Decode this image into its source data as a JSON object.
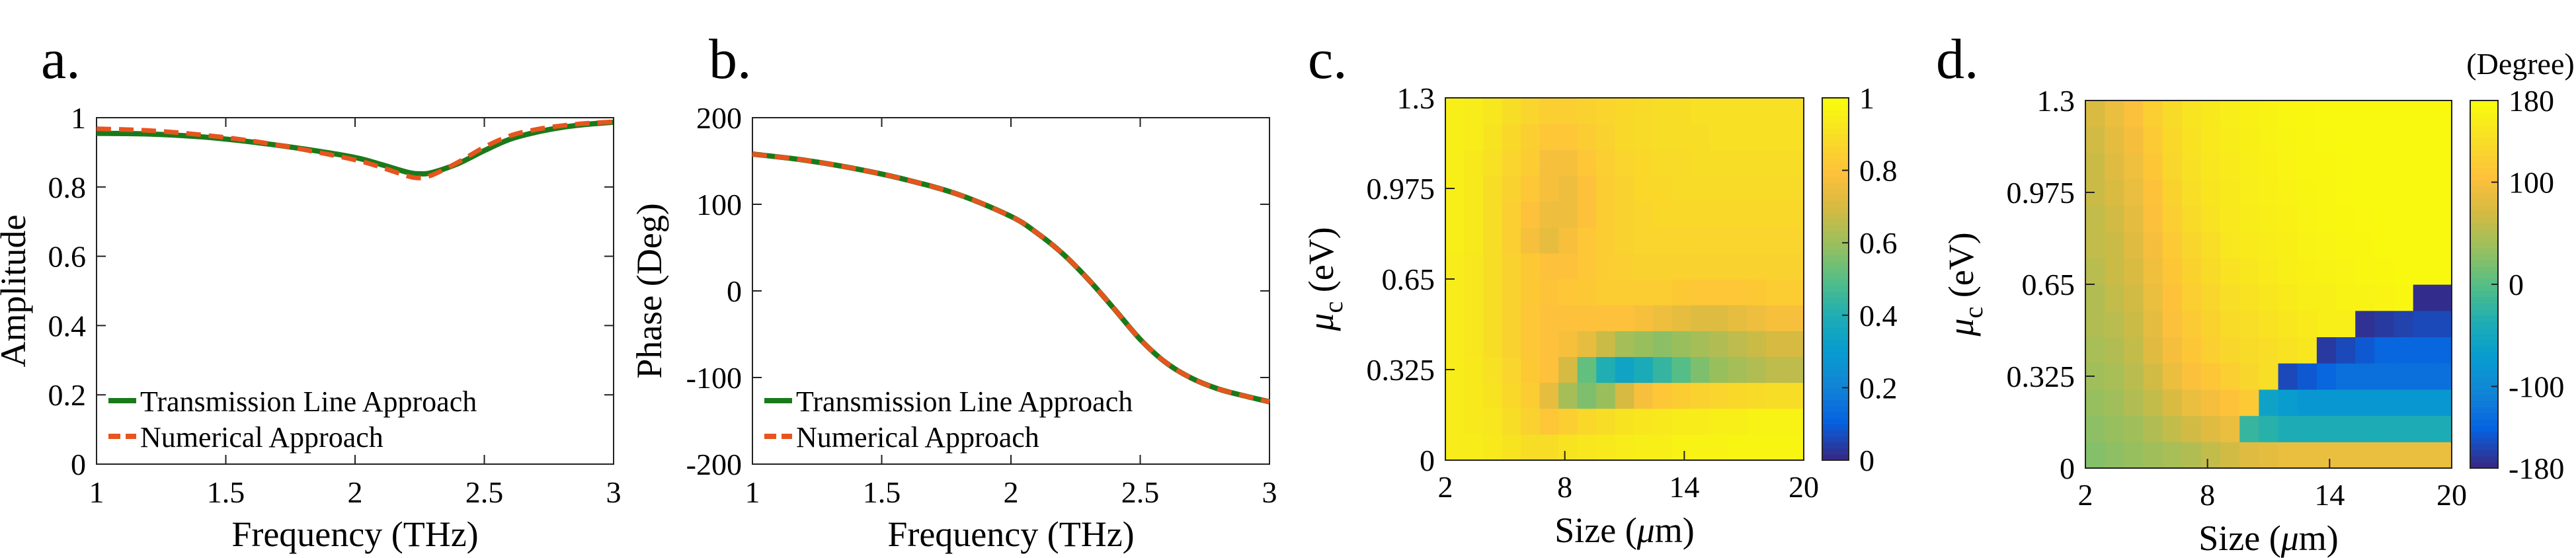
{
  "panel_labels": [
    "a.",
    "b.",
    "c.",
    "d."
  ],
  "colorbar_unit_d": "(Degree)",
  "chart_data": [
    {
      "type": "line",
      "panel": "a.",
      "xlabel": "Frequency (THz)",
      "ylabel": "Amplitude",
      "xlim": [
        1,
        3
      ],
      "ylim": [
        0,
        1
      ],
      "xticks": [
        "1",
        "1.5",
        "2",
        "2.5",
        "3"
      ],
      "yticks": [
        "0",
        "0.2",
        "0.4",
        "0.6",
        "0.8",
        "1"
      ],
      "legend_position": "bottom-left",
      "series": [
        {
          "name": "Transmission Line Approach",
          "color": "#1a7a1a",
          "dash": "solid",
          "x": [
            1.0,
            1.2,
            1.4,
            1.6,
            1.8,
            2.0,
            2.1,
            2.2,
            2.25,
            2.3,
            2.4,
            2.5,
            2.6,
            2.7,
            2.8,
            2.9,
            3.0
          ],
          "y": [
            0.955,
            0.953,
            0.945,
            0.93,
            0.91,
            0.885,
            0.865,
            0.843,
            0.838,
            0.842,
            0.868,
            0.905,
            0.938,
            0.958,
            0.972,
            0.981,
            0.987
          ]
        },
        {
          "name": "Numerical Approach",
          "color": "#e8541e",
          "dash": "dashed",
          "x": [
            1.0,
            1.2,
            1.4,
            1.6,
            1.8,
            2.0,
            2.1,
            2.2,
            2.25,
            2.3,
            2.4,
            2.5,
            2.6,
            2.7,
            2.8,
            2.9,
            3.0
          ],
          "y": [
            0.968,
            0.963,
            0.951,
            0.933,
            0.908,
            0.878,
            0.857,
            0.832,
            0.826,
            0.835,
            0.872,
            0.915,
            0.948,
            0.966,
            0.977,
            0.984,
            0.988
          ]
        }
      ]
    },
    {
      "type": "line",
      "panel": "b.",
      "xlabel": "Frequency (THz)",
      "ylabel": "Phase (Deg)",
      "xlim": [
        1,
        3
      ],
      "ylim": [
        -200,
        200
      ],
      "xticks": [
        "1",
        "1.5",
        "2",
        "2.5",
        "3"
      ],
      "yticks": [
        "-200",
        "-100",
        "0",
        "100",
        "200"
      ],
      "legend_position": "bottom-left",
      "series": [
        {
          "name": "Transmission Line Approach",
          "color": "#1a7a1a",
          "dash": "solid",
          "x": [
            1.0,
            1.2,
            1.4,
            1.6,
            1.8,
            2.0,
            2.1,
            2.2,
            2.3,
            2.4,
            2.5,
            2.6,
            2.7,
            2.8,
            2.9,
            3.0
          ],
          "y": [
            158,
            151,
            141,
            128,
            111,
            86,
            67,
            43,
            13,
            -21,
            -56,
            -83,
            -101,
            -113,
            -121,
            -128
          ]
        },
        {
          "name": "Numerical Approach",
          "color": "#e8541e",
          "dash": "dashed",
          "x": [
            1.0,
            1.2,
            1.4,
            1.6,
            1.8,
            2.0,
            2.1,
            2.2,
            2.3,
            2.4,
            2.5,
            2.6,
            2.7,
            2.8,
            2.9,
            3.0
          ],
          "y": [
            158,
            151,
            141,
            128,
            111,
            86,
            67,
            43,
            13,
            -21,
            -56,
            -83,
            -101,
            -113,
            -121,
            -128
          ]
        }
      ]
    },
    {
      "type": "heatmap",
      "panel": "c.",
      "xlabel": "Size (μm)",
      "ylabel": "μc (eV)",
      "xlim": [
        2,
        20
      ],
      "ylim": [
        0,
        1.3
      ],
      "xticks": [
        "2",
        "8",
        "14",
        "20"
      ],
      "yticks": [
        "0",
        "0.325",
        "0.65",
        "0.975",
        "1.3"
      ],
      "colorbar": {
        "min": 0,
        "max": 1,
        "ticks": [
          "0",
          "0.2",
          "0.4",
          "0.6",
          "0.8",
          "1"
        ]
      },
      "colormap": "parula",
      "x": [
        2,
        3,
        4,
        5,
        6,
        7,
        8,
        9,
        10,
        11,
        12,
        13,
        14,
        15,
        16,
        17,
        18,
        19,
        20
      ],
      "y": [
        0,
        0.1,
        0.2,
        0.3,
        0.4,
        0.5,
        0.6,
        0.7,
        0.8,
        0.9,
        1.0,
        1.1,
        1.2,
        1.3
      ],
      "z": [
        [
          0.95,
          0.95,
          0.94,
          0.92,
          0.9,
          0.9,
          0.92,
          0.93,
          0.94,
          0.95,
          0.96,
          0.96,
          0.97,
          0.97,
          0.97,
          0.98,
          0.98,
          0.98,
          0.98
        ],
        [
          0.95,
          0.94,
          0.93,
          0.9,
          0.86,
          0.82,
          0.85,
          0.88,
          0.9,
          0.92,
          0.93,
          0.94,
          0.95,
          0.95,
          0.96,
          0.96,
          0.97,
          0.97,
          0.97
        ],
        [
          0.95,
          0.94,
          0.92,
          0.88,
          0.84,
          0.74,
          0.62,
          0.56,
          0.6,
          0.7,
          0.78,
          0.82,
          0.84,
          0.86,
          0.87,
          0.88,
          0.89,
          0.9,
          0.9
        ],
        [
          0.95,
          0.94,
          0.91,
          0.87,
          0.83,
          0.8,
          0.7,
          0.52,
          0.4,
          0.34,
          0.38,
          0.44,
          0.5,
          0.56,
          0.6,
          0.62,
          0.64,
          0.66,
          0.66
        ],
        [
          0.95,
          0.93,
          0.9,
          0.86,
          0.82,
          0.8,
          0.78,
          0.74,
          0.68,
          0.62,
          0.6,
          0.58,
          0.6,
          0.62,
          0.64,
          0.66,
          0.68,
          0.7,
          0.7
        ],
        [
          0.95,
          0.93,
          0.9,
          0.86,
          0.82,
          0.8,
          0.8,
          0.8,
          0.8,
          0.8,
          0.78,
          0.76,
          0.74,
          0.72,
          0.72,
          0.74,
          0.76,
          0.78,
          0.78
        ],
        [
          0.95,
          0.93,
          0.9,
          0.86,
          0.83,
          0.81,
          0.82,
          0.83,
          0.84,
          0.84,
          0.84,
          0.84,
          0.83,
          0.82,
          0.82,
          0.82,
          0.83,
          0.84,
          0.84
        ],
        [
          0.95,
          0.93,
          0.9,
          0.86,
          0.83,
          0.8,
          0.8,
          0.82,
          0.84,
          0.85,
          0.86,
          0.86,
          0.86,
          0.86,
          0.86,
          0.86,
          0.86,
          0.86,
          0.86
        ],
        [
          0.96,
          0.94,
          0.9,
          0.85,
          0.78,
          0.74,
          0.78,
          0.82,
          0.84,
          0.86,
          0.87,
          0.87,
          0.87,
          0.87,
          0.87,
          0.87,
          0.87,
          0.87,
          0.87
        ],
        [
          0.96,
          0.94,
          0.9,
          0.85,
          0.8,
          0.76,
          0.76,
          0.8,
          0.84,
          0.86,
          0.87,
          0.88,
          0.88,
          0.88,
          0.88,
          0.88,
          0.88,
          0.88,
          0.88
        ],
        [
          0.96,
          0.94,
          0.9,
          0.86,
          0.82,
          0.78,
          0.76,
          0.8,
          0.84,
          0.86,
          0.88,
          0.88,
          0.89,
          0.89,
          0.89,
          0.89,
          0.89,
          0.89,
          0.89
        ],
        [
          0.96,
          0.94,
          0.91,
          0.87,
          0.84,
          0.78,
          0.78,
          0.82,
          0.85,
          0.87,
          0.88,
          0.89,
          0.89,
          0.9,
          0.9,
          0.9,
          0.9,
          0.9,
          0.9
        ],
        [
          0.96,
          0.95,
          0.92,
          0.88,
          0.85,
          0.82,
          0.82,
          0.84,
          0.86,
          0.88,
          0.89,
          0.9,
          0.9,
          0.9,
          0.91,
          0.91,
          0.91,
          0.91,
          0.91
        ],
        [
          0.96,
          0.95,
          0.93,
          0.9,
          0.87,
          0.85,
          0.85,
          0.86,
          0.87,
          0.88,
          0.89,
          0.9,
          0.9,
          0.91,
          0.91,
          0.91,
          0.91,
          0.91,
          0.91
        ]
      ]
    },
    {
      "type": "heatmap",
      "panel": "d.",
      "xlabel": "Size (μm)",
      "ylabel": "μc (eV)",
      "xlim": [
        2,
        20
      ],
      "ylim": [
        0,
        1.3
      ],
      "xticks": [
        "2",
        "8",
        "14",
        "20"
      ],
      "yticks": [
        "0",
        "0.325",
        "0.65",
        "0.975",
        "1.3"
      ],
      "colorbar": {
        "min": -180,
        "max": 180,
        "unit": "(Degree)",
        "ticks": [
          "-180",
          "-100",
          "0",
          "100",
          "180"
        ]
      },
      "colormap": "parula",
      "x": [
        2,
        3,
        4,
        5,
        6,
        7,
        8,
        9,
        10,
        11,
        12,
        13,
        14,
        15,
        16,
        17,
        18,
        19,
        20
      ],
      "y": [
        0,
        0.1,
        0.2,
        0.3,
        0.4,
        0.5,
        0.6,
        0.7,
        0.8,
        0.9,
        1.0,
        1.1,
        1.2,
        1.3
      ],
      "z": [
        [
          25,
          30,
          35,
          40,
          45,
          50,
          60,
          70,
          80,
          85,
          90,
          90,
          90,
          90,
          90,
          90,
          90,
          90,
          90
        ],
        [
          30,
          35,
          40,
          50,
          60,
          70,
          80,
          90,
          -20,
          -30,
          -40,
          -40,
          -40,
          -40,
          -40,
          -40,
          -40,
          -40,
          -40
        ],
        [
          35,
          40,
          50,
          60,
          75,
          90,
          100,
          110,
          120,
          -60,
          -70,
          -80,
          -80,
          -80,
          -80,
          -80,
          -80,
          -80,
          -80
        ],
        [
          40,
          45,
          55,
          70,
          90,
          105,
          115,
          125,
          135,
          145,
          -160,
          -150,
          -140,
          -130,
          -130,
          -130,
          -130,
          -130,
          -130
        ],
        [
          45,
          50,
          60,
          80,
          100,
          115,
          125,
          135,
          140,
          145,
          150,
          155,
          -170,
          -160,
          -150,
          -140,
          -140,
          -140,
          -140
        ],
        [
          50,
          55,
          65,
          85,
          105,
          120,
          130,
          140,
          145,
          150,
          155,
          160,
          165,
          165,
          -175,
          -170,
          -165,
          -160,
          -160
        ],
        [
          50,
          60,
          70,
          90,
          110,
          125,
          135,
          145,
          150,
          155,
          160,
          165,
          165,
          170,
          170,
          172,
          175,
          -178,
          -178
        ],
        [
          55,
          65,
          75,
          95,
          115,
          130,
          140,
          150,
          155,
          160,
          165,
          168,
          170,
          172,
          174,
          176,
          178,
          178,
          178
        ],
        [
          60,
          65,
          80,
          100,
          120,
          135,
          145,
          155,
          160,
          163,
          166,
          170,
          172,
          174,
          176,
          178,
          178,
          178,
          178
        ],
        [
          60,
          70,
          85,
          105,
          125,
          140,
          150,
          157,
          162,
          165,
          168,
          172,
          174,
          176,
          177,
          178,
          178,
          178,
          178
        ],
        [
          65,
          75,
          90,
          110,
          130,
          145,
          153,
          158,
          164,
          167,
          170,
          173,
          175,
          177,
          178,
          178,
          178,
          178,
          178
        ],
        [
          65,
          80,
          95,
          115,
          135,
          148,
          155,
          160,
          165,
          168,
          172,
          175,
          176,
          177,
          178,
          178,
          178,
          178,
          178
        ],
        [
          70,
          85,
          100,
          120,
          138,
          150,
          157,
          162,
          166,
          170,
          173,
          175,
          177,
          178,
          178,
          178,
          178,
          178,
          178
        ],
        [
          75,
          90,
          105,
          125,
          140,
          152,
          158,
          164,
          168,
          171,
          174,
          176,
          178,
          178,
          178,
          178,
          178,
          178,
          178
        ]
      ]
    }
  ]
}
